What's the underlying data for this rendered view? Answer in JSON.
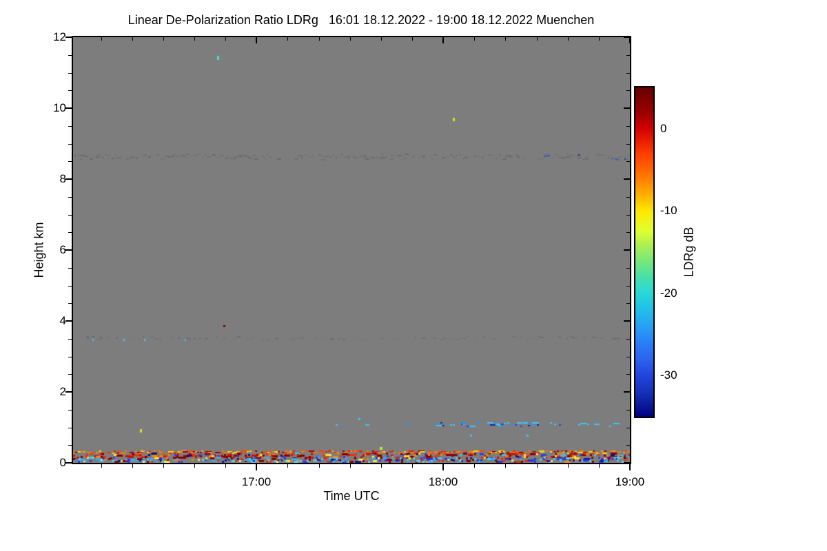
{
  "chart_data": {
    "type": "heatmap",
    "title": "Linear De-Polarization Ratio LDRg   16:01 18.12.2022 - 19:00 18.12.2022 Muenchen",
    "xlabel": "Time UTC",
    "ylabel": "Height km",
    "colorbar_label": "LDRg dB",
    "time_start": "16:01 18.12.2022",
    "time_end": "19:00 18.12.2022",
    "station": "Muenchen",
    "no_data_color": "#7d7d7d",
    "seed": 42,
    "x_axis": {
      "span_minutes": 179,
      "major_ticks": [
        {
          "min": 59,
          "label": "17:00"
        },
        {
          "min": 119,
          "label": "18:00"
        },
        {
          "min": 179,
          "label": "19:00"
        }
      ],
      "minor_first_min": 9,
      "minor_step_min": 10
    },
    "y_axis": {
      "min_km": 0,
      "max_km": 12,
      "major_step_km": 2,
      "minor_step_km": 0.5,
      "major_labels": [
        "0",
        "2",
        "4",
        "6",
        "8",
        "10",
        "12"
      ]
    },
    "colorbar": {
      "top_value_db": 5,
      "bottom_value_db": -35,
      "major_ticks": [
        {
          "v": 0,
          "label": "0"
        },
        {
          "v": -10,
          "label": "-10"
        },
        {
          "v": -20,
          "label": "-20"
        },
        {
          "v": -30,
          "label": "-30"
        }
      ],
      "minor_step_db": 1,
      "gradient": [
        [
          0,
          "#650000"
        ],
        [
          7.5,
          "#9b0000"
        ],
        [
          12.5,
          "#d40000"
        ],
        [
          20,
          "#ff3c00"
        ],
        [
          27.5,
          "#ff7c00"
        ],
        [
          32.5,
          "#ffae00"
        ],
        [
          37.5,
          "#ffe800"
        ],
        [
          43.8,
          "#ddff30"
        ],
        [
          47.5,
          "#b0f050"
        ],
        [
          52.5,
          "#78e878"
        ],
        [
          57.5,
          "#48e0a8"
        ],
        [
          62.5,
          "#28d8d8"
        ],
        [
          67.5,
          "#20c0ea"
        ],
        [
          72.5,
          "#28a0f4"
        ],
        [
          77.5,
          "#2880f8"
        ],
        [
          82.5,
          "#2c64f0"
        ],
        [
          87.5,
          "#2244dc"
        ],
        [
          93,
          "#1430b4"
        ],
        [
          100,
          "#000080"
        ]
      ]
    },
    "layers": [
      {
        "name": "faint-8.6km-texture",
        "t0": 0,
        "t1": 179,
        "km0": 8.55,
        "km1": 8.7,
        "density": 0.55,
        "passes": 1,
        "cw": 2,
        "ch": 2,
        "palette": [
          [
            "#717171",
            0.5
          ],
          [
            "#6a6a6a",
            0.3
          ],
          [
            "#787878",
            0.2
          ]
        ]
      },
      {
        "name": "faint-8.6km-blue-specks",
        "t0": 150,
        "t1": 178,
        "km0": 8.55,
        "km1": 8.7,
        "density": 0.14,
        "passes": 1,
        "cw": 2,
        "ch": 2,
        "palette": [
          [
            "#2040c0",
            0.5
          ],
          [
            "#404080",
            0.3
          ],
          [
            "#3060d0",
            0.2
          ]
        ]
      },
      {
        "name": "faint-3.5km-texture",
        "t0": 0,
        "t1": 179,
        "km0": 3.47,
        "km1": 3.56,
        "density": 0.3,
        "passes": 1,
        "cw": 2,
        "ch": 2,
        "palette": [
          [
            "#747474",
            0.5
          ],
          [
            "#6e6e6e",
            0.3
          ],
          [
            "#7a7a7a",
            0.2
          ]
        ]
      },
      {
        "name": "elevated-aerosol-line-0.3km",
        "t0": 0,
        "t1": 179,
        "km0": 0.27,
        "km1": 0.34,
        "density": 0.78,
        "passes": 1,
        "cw": 3,
        "ch": 2,
        "palette": [
          [
            "#ff7a00",
            0.3
          ],
          [
            "#ff4500",
            0.2
          ],
          [
            "#e02000",
            0.15
          ],
          [
            "#a00000",
            0.12
          ],
          [
            "#ffd400",
            0.15
          ],
          [
            "#ff9c30",
            0.08
          ]
        ]
      },
      {
        "name": "surface-band-upper",
        "t0": 0,
        "t1": 179,
        "km0": 0.13,
        "km1": 0.26,
        "density": 0.5,
        "passes": 2,
        "cw": 3,
        "ch": 3,
        "palette": [
          [
            "#8a0000",
            0.28
          ],
          [
            "#c01800",
            0.18
          ],
          [
            "#f03000",
            0.14
          ],
          [
            "#ff8000",
            0.1
          ],
          [
            "#2840f0",
            0.1
          ],
          [
            "#38c0f0",
            0.08
          ],
          [
            "#ffe040",
            0.05
          ],
          [
            "#101080",
            0.07
          ]
        ]
      },
      {
        "name": "surface-band-lower",
        "t0": 0,
        "t1": 179,
        "km0": 0.02,
        "km1": 0.14,
        "density": 0.55,
        "passes": 2,
        "cw": 3,
        "ch": 3,
        "palette": [
          [
            "#38a8f8",
            0.2
          ],
          [
            "#48d0f0",
            0.16
          ],
          [
            "#2838e8",
            0.18
          ],
          [
            "#8a0000",
            0.14
          ],
          [
            "#e03000",
            0.1
          ],
          [
            "#ff8000",
            0.08
          ],
          [
            "#101890",
            0.08
          ],
          [
            "#ffe040",
            0.06
          ]
        ]
      },
      {
        "name": "cloud-layer-1.1km-sparse",
        "t0": 78,
        "t1": 179,
        "km0": 1.03,
        "km1": 1.13,
        "density": 0.16,
        "passes": 1,
        "cw": 3,
        "ch": 2,
        "palette": [
          [
            "#38c8f8",
            0.5
          ],
          [
            "#2890f0",
            0.2
          ],
          [
            "#2048f0",
            0.2
          ],
          [
            "#1028c0",
            0.1
          ]
        ]
      },
      {
        "name": "cloud-layer-1.1km-dense",
        "t0": 116,
        "t1": 152,
        "km0": 1.03,
        "km1": 1.13,
        "density": 0.42,
        "passes": 1,
        "cw": 3,
        "ch": 2,
        "palette": [
          [
            "#38c8f8",
            0.4
          ],
          [
            "#2890f0",
            0.15
          ],
          [
            "#2048f0",
            0.3
          ],
          [
            "#1028c0",
            0.15
          ]
        ]
      }
    ],
    "dots": [
      {
        "min": 6.4,
        "km": 3.46,
        "color": "#40c8f0",
        "w": 2,
        "h": 3
      },
      {
        "min": 16.4,
        "km": 3.46,
        "color": "#40c8f0",
        "w": 2,
        "h": 3
      },
      {
        "min": 23.0,
        "km": 3.46,
        "color": "#40c8f0",
        "w": 2,
        "h": 3
      },
      {
        "min": 36.0,
        "km": 3.46,
        "color": "#40c8f0",
        "w": 2,
        "h": 3
      },
      {
        "min": 46.7,
        "km": 11.42,
        "color": "#40e0d0",
        "w": 3,
        "h": 6
      },
      {
        "min": 122.5,
        "km": 9.67,
        "color": "#d8e020",
        "w": 3,
        "h": 5
      },
      {
        "min": 48.7,
        "km": 3.86,
        "color": "#8a0000",
        "w": 3,
        "h": 3
      },
      {
        "min": 99.0,
        "km": 0.41,
        "color": "#c8e838",
        "w": 4,
        "h": 4
      },
      {
        "min": 21.9,
        "km": 0.91,
        "color": "#e8d820",
        "w": 3,
        "h": 5
      },
      {
        "min": 92.0,
        "km": 1.24,
        "color": "#38c8f0",
        "w": 3,
        "h": 3
      },
      {
        "min": 128.0,
        "km": 0.76,
        "color": "#38c8f0",
        "w": 3,
        "h": 3
      },
      {
        "min": 146.0,
        "km": 0.76,
        "color": "#38c8f0",
        "w": 3,
        "h": 3
      }
    ]
  }
}
